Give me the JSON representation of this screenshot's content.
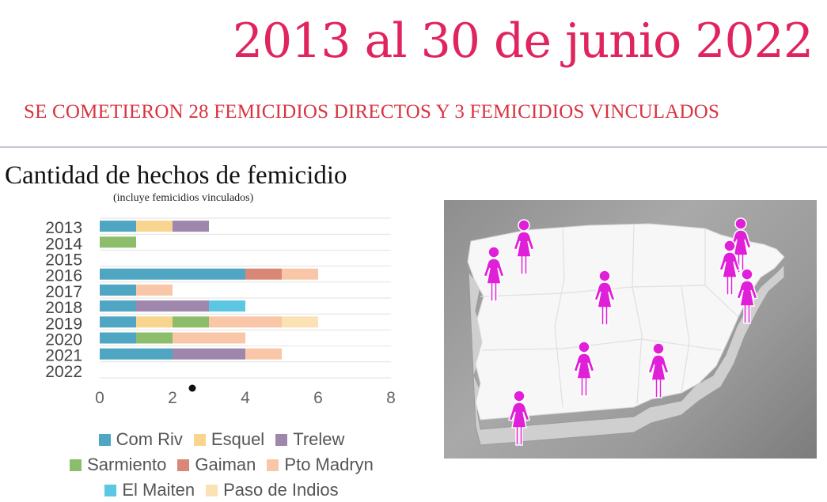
{
  "header": {
    "headline": "2013 al 30 de junio 2022",
    "subheadline": "SE COMETIERON 28 FEMICIDIOS DIRECTOS Y 3 FEMICIDIOS VINCULADOS"
  },
  "chart_data": {
    "type": "bar",
    "orientation": "horizontal",
    "stacked": true,
    "title": "Cantidad de hechos de femicidio",
    "subtitle": "(incluye femicidios vinculados)",
    "categories": [
      "2013",
      "2014",
      "2015",
      "2016",
      "2017",
      "2018",
      "2019",
      "2020",
      "2021",
      "2022"
    ],
    "xlim": [
      0,
      8
    ],
    "xticks": [
      "0",
      "2",
      "4",
      "6",
      "8"
    ],
    "grid": true,
    "legend_position": "bottom",
    "series": [
      {
        "name": "Com Riv",
        "color": "#4fa6c3",
        "values": [
          1,
          0,
          0,
          4,
          1,
          1,
          1,
          1,
          2,
          0
        ]
      },
      {
        "name": "Esquel",
        "color": "#f8d58f",
        "values": [
          1,
          0,
          0,
          0,
          0,
          0,
          1,
          0,
          0,
          0
        ]
      },
      {
        "name": "Trelew",
        "color": "#9f86ad",
        "values": [
          1,
          0,
          0,
          0,
          0,
          2,
          0,
          0,
          2,
          0
        ]
      },
      {
        "name": "Sarmiento",
        "color": "#8cbd6a",
        "values": [
          0,
          1,
          0,
          0,
          0,
          0,
          1,
          1,
          0,
          0
        ]
      },
      {
        "name": "Gaiman",
        "color": "#d98878",
        "values": [
          0,
          0,
          0,
          1,
          0,
          0,
          0,
          0,
          0,
          0
        ]
      },
      {
        "name": "Pto Madryn",
        "color": "#f9c7a8",
        "values": [
          0,
          0,
          0,
          1,
          1,
          0,
          2,
          2,
          1,
          0
        ]
      },
      {
        "name": "El Maiten",
        "color": "#5bc7e3",
        "values": [
          0,
          0,
          0,
          0,
          0,
          1,
          0,
          0,
          0,
          0
        ]
      },
      {
        "name": "Paso de Indios",
        "color": "#fbe2b4",
        "values": [
          0,
          0,
          0,
          0,
          0,
          0,
          1,
          0,
          0,
          0
        ]
      }
    ]
  },
  "legend_rows": [
    [
      0,
      1,
      2
    ],
    [
      3,
      4,
      5
    ],
    [
      6,
      7
    ]
  ],
  "map": {
    "marker_icon": "woman-figure-icon",
    "marker_color": "#e020d8",
    "marker_count": 9
  }
}
